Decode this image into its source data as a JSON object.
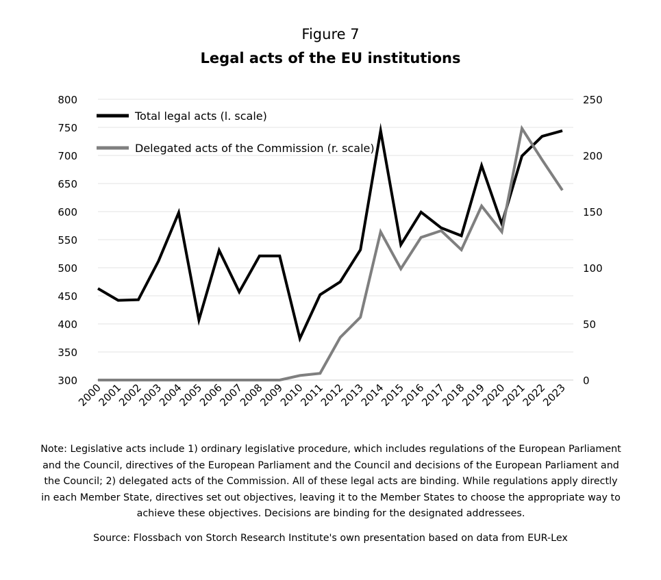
{
  "figure_label": "Figure 7",
  "title": "Legal acts of the EU institutions",
  "note": "Note: Legislative acts include 1) ordinary legislative procedure, which includes regulations of the European Parliament and the Council, directives of the European Parliament and the Council and decisions of the European Parliament and the Council; 2) delegated acts of the Commission. All of these legal acts are binding. While regulations apply directly in each Member State, directives set out objectives, leaving it to the Member States to choose the appropriate way to achieve these objectives. Decisions are binding for the designated addressees.",
  "source": "Source: Flossbach von Storch Research Institute's own presentation based on data from EUR-Lex",
  "chart_data": {
    "type": "line",
    "x": [
      "2000",
      "2001",
      "2002",
      "2003",
      "2004",
      "2005",
      "2006",
      "2007",
      "2008",
      "2009",
      "2010",
      "2011",
      "2012",
      "2013",
      "2014",
      "2015",
      "2016",
      "2017",
      "2018",
      "2019",
      "2020",
      "2021",
      "2022",
      "2023"
    ],
    "y_left": {
      "min": 300,
      "max": 800,
      "ticks": [
        300,
        350,
        400,
        450,
        500,
        550,
        600,
        650,
        700,
        750,
        800
      ]
    },
    "y_right": {
      "min": 0,
      "max": 250,
      "ticks": [
        0,
        50,
        100,
        150,
        200,
        250
      ]
    },
    "grid": true,
    "legend_position": "top-left",
    "series": [
      {
        "name": "Total legal acts (l. scale)",
        "axis": "left",
        "color": "#000000",
        "values": [
          463,
          442,
          443,
          512,
          598,
          407,
          531,
          457,
          521,
          521,
          374,
          452,
          475,
          532,
          744,
          541,
          599,
          571,
          557,
          682,
          578,
          699,
          734,
          744
        ]
      },
      {
        "name": "Delegated acts of the Commission (r. scale)",
        "axis": "right",
        "color": "#7f7f7f",
        "values": [
          0,
          0,
          0,
          0,
          0,
          0,
          0,
          0,
          0,
          0,
          4,
          6,
          38,
          56,
          132,
          99,
          127,
          133,
          116,
          155,
          132,
          224,
          196,
          169
        ]
      }
    ]
  }
}
